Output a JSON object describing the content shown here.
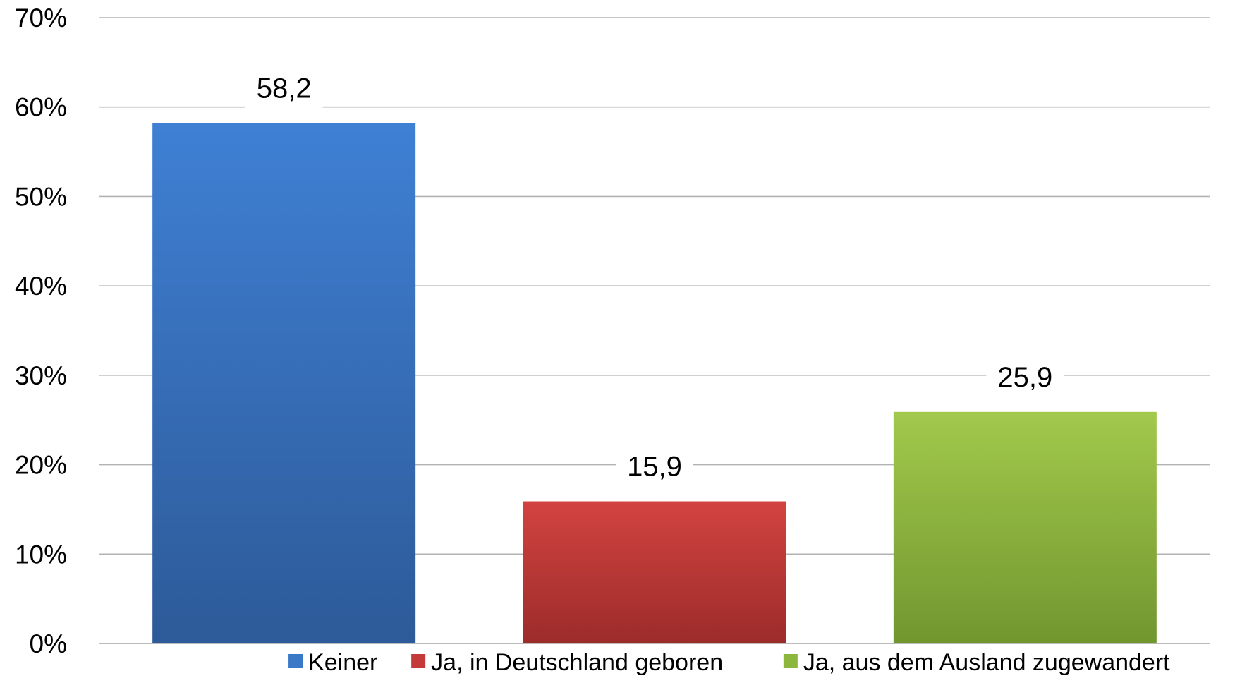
{
  "chart_data": {
    "type": "bar",
    "title": "",
    "xlabel": "",
    "ylabel": "",
    "ylim": [
      0,
      70
    ],
    "y_tick_step": 10,
    "y_tick_suffix": "%",
    "grid": true,
    "legend_position": "bottom",
    "categories": [
      "Keiner",
      "Ja, in Deutschland geboren",
      "Ja, aus dem Ausland zugewandert"
    ],
    "values": [
      58.2,
      15.9,
      25.9
    ],
    "data_labels": [
      "58,2",
      "15,9",
      "25,9"
    ],
    "colors": [
      {
        "top": "#3f80d4",
        "bottom": "#2d5a98"
      },
      {
        "top": "#d24341",
        "bottom": "#9c2c2a"
      },
      {
        "top": "#a2c94c",
        "bottom": "#72962f"
      }
    ],
    "legend": [
      {
        "label": "Keiner",
        "color": "#3a78c8"
      },
      {
        "label": "Ja, in Deutschland geboren",
        "color": "#c43a38"
      },
      {
        "label": "Ja, aus dem Ausland zugewandert",
        "color": "#8db63c"
      }
    ]
  }
}
